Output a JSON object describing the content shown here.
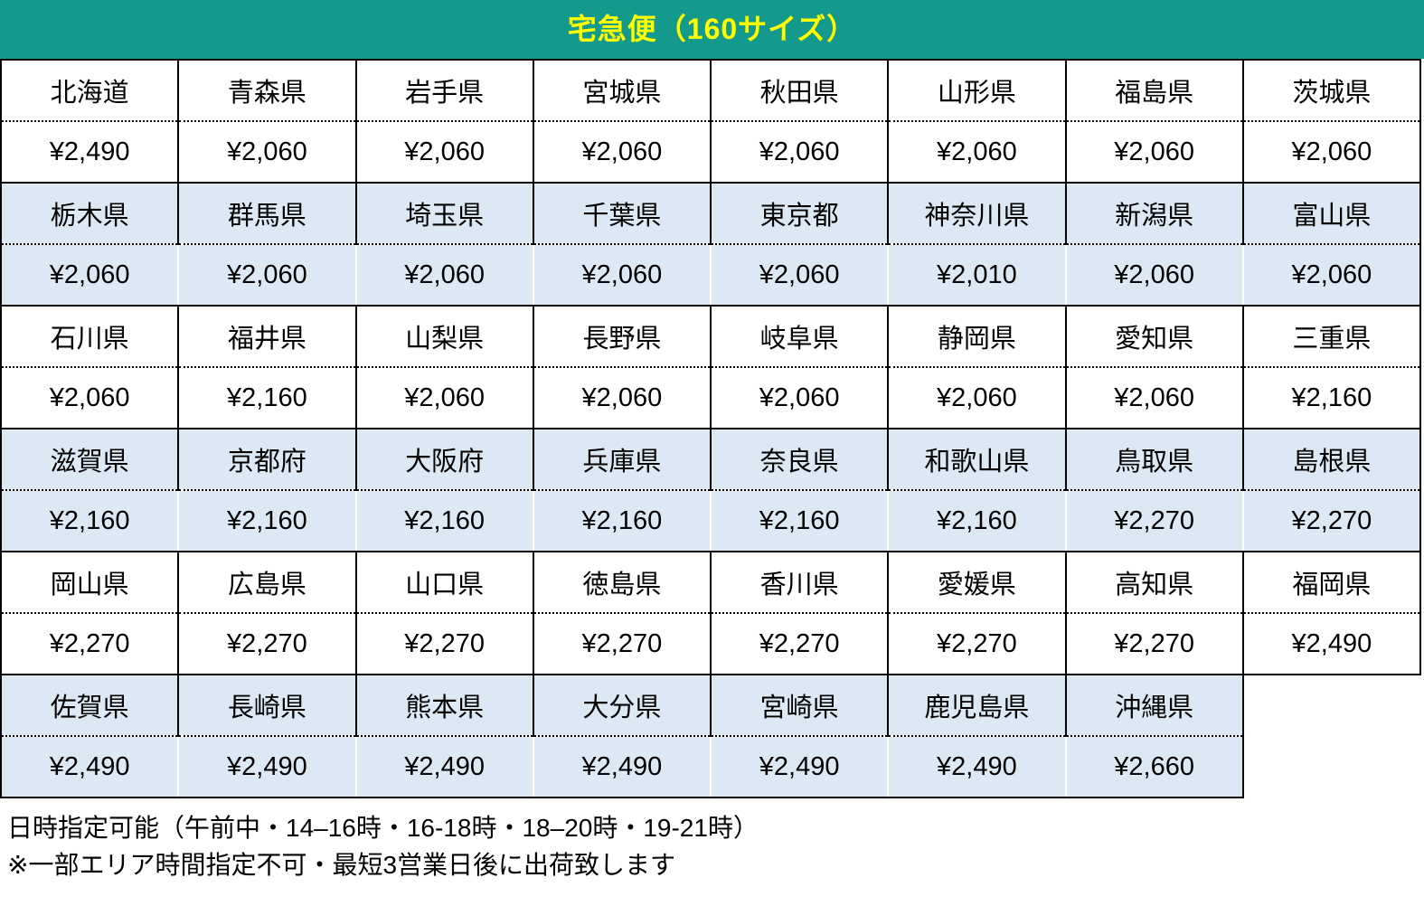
{
  "header": {
    "title": "宅急便（160サイズ）",
    "bg_color": "#149a8c",
    "text_color": "#ffff00"
  },
  "table": {
    "columns": 8,
    "row_shade_colors": {
      "white": "#ffffff",
      "blue": "#dce9f5"
    },
    "rows": [
      {
        "shade": "white",
        "cells": [
          {
            "name": "北海道",
            "price": "¥2,490"
          },
          {
            "name": "青森県",
            "price": "¥2,060"
          },
          {
            "name": "岩手県",
            "price": "¥2,060"
          },
          {
            "name": "宮城県",
            "price": "¥2,060"
          },
          {
            "name": "秋田県",
            "price": "¥2,060"
          },
          {
            "name": "山形県",
            "price": "¥2,060"
          },
          {
            "name": "福島県",
            "price": "¥2,060"
          },
          {
            "name": "茨城県",
            "price": "¥2,060"
          }
        ]
      },
      {
        "shade": "blue",
        "cells": [
          {
            "name": "栃木県",
            "price": "¥2,060"
          },
          {
            "name": "群馬県",
            "price": "¥2,060"
          },
          {
            "name": "埼玉県",
            "price": "¥2,060"
          },
          {
            "name": "千葉県",
            "price": "¥2,060"
          },
          {
            "name": "東京都",
            "price": "¥2,060"
          },
          {
            "name": "神奈川県",
            "price": "¥2,010"
          },
          {
            "name": "新潟県",
            "price": "¥2,060"
          },
          {
            "name": "富山県",
            "price": "¥2,060"
          }
        ]
      },
      {
        "shade": "white",
        "cells": [
          {
            "name": "石川県",
            "price": "¥2,060"
          },
          {
            "name": "福井県",
            "price": "¥2,160"
          },
          {
            "name": "山梨県",
            "price": "¥2,060"
          },
          {
            "name": "長野県",
            "price": "¥2,060"
          },
          {
            "name": "岐阜県",
            "price": "¥2,060"
          },
          {
            "name": "静岡県",
            "price": "¥2,060"
          },
          {
            "name": "愛知県",
            "price": "¥2,060"
          },
          {
            "name": "三重県",
            "price": "¥2,160"
          }
        ]
      },
      {
        "shade": "blue",
        "cells": [
          {
            "name": "滋賀県",
            "price": "¥2,160"
          },
          {
            "name": "京都府",
            "price": "¥2,160"
          },
          {
            "name": "大阪府",
            "price": "¥2,160"
          },
          {
            "name": "兵庫県",
            "price": "¥2,160"
          },
          {
            "name": "奈良県",
            "price": "¥2,160"
          },
          {
            "name": "和歌山県",
            "price": "¥2,160"
          },
          {
            "name": "鳥取県",
            "price": "¥2,270"
          },
          {
            "name": "島根県",
            "price": "¥2,270"
          }
        ]
      },
      {
        "shade": "white",
        "cells": [
          {
            "name": "岡山県",
            "price": "¥2,270"
          },
          {
            "name": "広島県",
            "price": "¥2,270"
          },
          {
            "name": "山口県",
            "price": "¥2,270"
          },
          {
            "name": "徳島県",
            "price": "¥2,270"
          },
          {
            "name": "香川県",
            "price": "¥2,270"
          },
          {
            "name": "愛媛県",
            "price": "¥2,270"
          },
          {
            "name": "高知県",
            "price": "¥2,270"
          },
          {
            "name": "福岡県",
            "price": "¥2,490"
          }
        ]
      },
      {
        "shade": "blue",
        "cells": [
          {
            "name": "佐賀県",
            "price": "¥2,490"
          },
          {
            "name": "長崎県",
            "price": "¥2,490"
          },
          {
            "name": "熊本県",
            "price": "¥2,490"
          },
          {
            "name": "大分県",
            "price": "¥2,490"
          },
          {
            "name": "宮崎県",
            "price": "¥2,490"
          },
          {
            "name": "鹿児島県",
            "price": "¥2,490"
          },
          {
            "name": "沖縄県",
            "price": "¥2,660"
          }
        ]
      }
    ]
  },
  "notes": [
    "日時指定可能（午前中・14–16時・16-18時・18–20時・19-21時）",
    "※一部エリア時間指定不可・最短3営業日後に出荷致します"
  ]
}
